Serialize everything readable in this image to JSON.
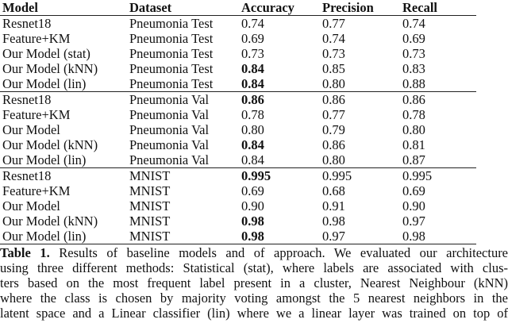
{
  "table": {
    "headers": [
      "Model",
      "Dataset",
      "Accuracy",
      "Precision",
      "Recall"
    ],
    "groups": [
      {
        "rows": [
          {
            "model": "Resnet18",
            "dataset": "Pneumonia Test",
            "accuracy": "0.74",
            "precision": "0.77",
            "recall": "0.74",
            "bold_accuracy": false
          },
          {
            "model": "Feature+KM",
            "dataset": "Pneumonia Test",
            "accuracy": "0.69",
            "precision": "0.74",
            "recall": "0.69",
            "bold_accuracy": false
          },
          {
            "model": "Our Model (stat)",
            "dataset": "Pneumonia Test",
            "accuracy": "0.73",
            "precision": "0.73",
            "recall": "0.73",
            "bold_accuracy": false
          },
          {
            "model": "Our Model (kNN)",
            "dataset": "Pneumonia Test",
            "accuracy": "0.84",
            "precision": "0.85",
            "recall": "0.83",
            "bold_accuracy": true
          },
          {
            "model": "Our Model (lin)",
            "dataset": "Pneumonia Test",
            "accuracy": "0.84",
            "precision": "0.80",
            "recall": "0.88",
            "bold_accuracy": true
          }
        ]
      },
      {
        "rows": [
          {
            "model": "Resnet18",
            "dataset": "Pneumonia Val",
            "accuracy": "0.86",
            "precision": "0.86",
            "recall": "0.86",
            "bold_accuracy": true
          },
          {
            "model": "Feature+KM",
            "dataset": "Pneumonia Val",
            "accuracy": "0.78",
            "precision": "0.77",
            "recall": "0.78",
            "bold_accuracy": false
          },
          {
            "model": "Our Model",
            "dataset": "Pneumonia Val",
            "accuracy": "0.80",
            "precision": "0.79",
            "recall": "0.80",
            "bold_accuracy": false
          },
          {
            "model": "Our Model (kNN)",
            "dataset": "Pneumonia Val",
            "accuracy": "0.84",
            "precision": "0.86",
            "recall": "0.81",
            "bold_accuracy": true
          },
          {
            "model": "Our Model (lin)",
            "dataset": "Pneumonia Val",
            "accuracy": "0.84",
            "precision": "0.80",
            "recall": "0.87",
            "bold_accuracy": false
          }
        ]
      },
      {
        "rows": [
          {
            "model": "Resnet18",
            "dataset": "MNIST",
            "accuracy": "0.995",
            "precision": "0.995",
            "recall": "0.995",
            "bold_accuracy": true
          },
          {
            "model": "Feature+KM",
            "dataset": "MNIST",
            "accuracy": "0.69",
            "precision": "0.68",
            "recall": "0.69",
            "bold_accuracy": false
          },
          {
            "model": "Our Model",
            "dataset": "MNIST",
            "accuracy": "0.90",
            "precision": "0.91",
            "recall": "0.90",
            "bold_accuracy": false
          },
          {
            "model": "Our Model (kNN)",
            "dataset": "MNIST",
            "accuracy": "0.98",
            "precision": "0.98",
            "recall": "0.97",
            "bold_accuracy": true
          },
          {
            "model": "Our Model (lin)",
            "dataset": "MNIST",
            "accuracy": "0.98",
            "precision": "0.97",
            "recall": "0.98",
            "bold_accuracy": true
          }
        ]
      }
    ]
  },
  "caption": {
    "label": "Table 1.",
    "lines": [
      " Results of baseline models and of approach. We evaluated our architecture",
      "using three different methods: Statistical (stat), where labels are associated with clus-",
      "ters based on the most frequent label present in a cluster, Nearest Neighbour (kNN)",
      "where the class is chosen by majority voting amongst the 5 nearest neighbors in the",
      "latent space and a Linear classifier (lin) where we a linear layer was trained on top of"
    ]
  }
}
